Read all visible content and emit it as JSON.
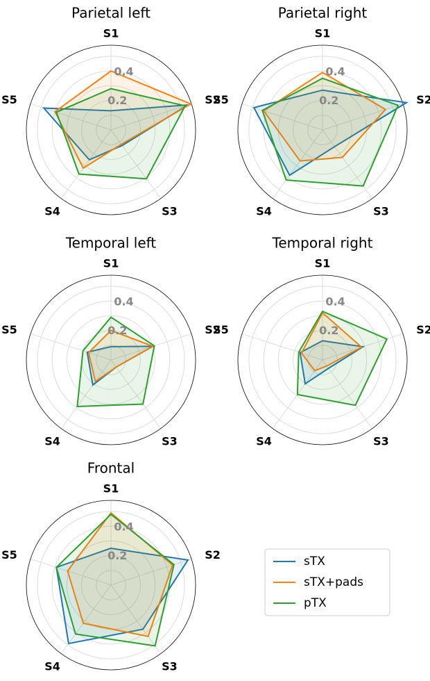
{
  "chart_data": [
    {
      "type": "radar",
      "title": "Parietal left",
      "categories": [
        "S1",
        "S2",
        "S3",
        "S4",
        "S5"
      ],
      "rlim": [
        0,
        0.575
      ],
      "rticks": [
        0.2,
        0.4
      ],
      "rminor": [
        0.1,
        0.3,
        0.5
      ],
      "series": [
        {
          "name": "sTX",
          "color": "#1f77b4",
          "values": [
            0.13,
            0.55,
            0.13,
            0.25,
            0.48
          ]
        },
        {
          "name": "sTX+pads",
          "color": "#ff7f0e",
          "values": [
            0.4,
            0.57,
            0.12,
            0.32,
            0.4
          ]
        },
        {
          "name": "pTX",
          "color": "#2ca02c",
          "values": [
            0.28,
            0.53,
            0.41,
            0.37,
            0.39
          ]
        }
      ]
    },
    {
      "type": "radar",
      "title": "Parietal right",
      "categories": [
        "S1",
        "S2",
        "S3",
        "S4",
        "S5"
      ],
      "rlim": [
        0,
        0.575
      ],
      "rticks": [
        0.2,
        0.4
      ],
      "rminor": [
        0.1,
        0.3,
        0.5
      ],
      "series": [
        {
          "name": "sTX",
          "color": "#1f77b4",
          "values": [
            0.27,
            0.6,
            0.14,
            0.38,
            0.49
          ]
        },
        {
          "name": "sTX+pads",
          "color": "#ff7f0e",
          "values": [
            0.39,
            0.45,
            0.23,
            0.26,
            0.42
          ]
        },
        {
          "name": "pTX",
          "color": "#2ca02c",
          "values": [
            0.35,
            0.54,
            0.47,
            0.42,
            0.43
          ]
        }
      ]
    },
    {
      "type": "radar",
      "title": "Temporal left",
      "categories": [
        "S1",
        "S2",
        "S3",
        "S4",
        "S5"
      ],
      "rlim": [
        0,
        0.575
      ],
      "rticks": [
        0.2,
        0.4
      ],
      "rminor": [
        0.1,
        0.3,
        0.5
      ],
      "series": [
        {
          "name": "sTX",
          "color": "#1f77b4",
          "values": [
            0.09,
            0.3,
            0.06,
            0.21,
            0.17
          ]
        },
        {
          "name": "sTX+pads",
          "color": "#ff7f0e",
          "values": [
            0.2,
            0.3,
            0.06,
            0.18,
            0.16
          ]
        },
        {
          "name": "pTX",
          "color": "#2ca02c",
          "values": [
            0.29,
            0.31,
            0.37,
            0.39,
            0.2
          ]
        }
      ]
    },
    {
      "type": "radar",
      "title": "Temporal right",
      "categories": [
        "S1",
        "S2",
        "S3",
        "S4",
        "S5"
      ],
      "rlim": [
        0,
        0.575
      ],
      "rticks": [
        0.2,
        0.4
      ],
      "rminor": [
        0.1,
        0.3,
        0.5
      ],
      "series": [
        {
          "name": "sTX",
          "color": "#1f77b4",
          "values": [
            0.13,
            0.29,
            0.07,
            0.2,
            0.16
          ]
        },
        {
          "name": "sTX+pads",
          "color": "#ff7f0e",
          "values": [
            0.32,
            0.28,
            0.05,
            0.09,
            0.15
          ]
        },
        {
          "name": "pTX",
          "color": "#2ca02c",
          "values": [
            0.33,
            0.46,
            0.38,
            0.29,
            0.17
          ]
        }
      ]
    },
    {
      "type": "radar",
      "title": "Frontal",
      "categories": [
        "S1",
        "S2",
        "S3",
        "S4",
        "S5"
      ],
      "rlim": [
        0,
        0.575
      ],
      "rticks": [
        0.2,
        0.4
      ],
      "rminor": [
        0.1,
        0.3,
        0.5
      ],
      "series": [
        {
          "name": "sTX",
          "color": "#1f77b4",
          "values": [
            0.25,
            0.55,
            0.37,
            0.49,
            0.39
          ]
        },
        {
          "name": "sTX+pads",
          "color": "#ff7f0e",
          "values": [
            0.49,
            0.44,
            0.43,
            0.32,
            0.31
          ]
        },
        {
          "name": "pTX",
          "color": "#2ca02c",
          "values": [
            0.48,
            0.45,
            0.51,
            0.41,
            0.39
          ]
        }
      ]
    }
  ]
}
